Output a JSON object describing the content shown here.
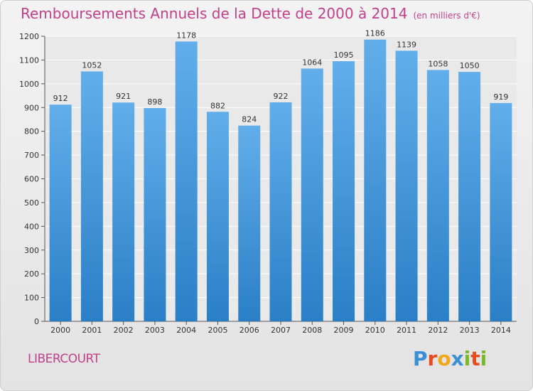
{
  "title": "Remboursements Annuels de la Dette de 2000 à 2014",
  "unit": "(en milliers d'€)",
  "city": "LIBERCOURT",
  "logo": {
    "text": "Proxiti",
    "letters": [
      "P",
      "r",
      "o",
      "x",
      "i",
      "t",
      "i"
    ],
    "colors": [
      "#3b8fd6",
      "#e8491d",
      "#f2a81d",
      "#3b8fd6",
      "#7ab929",
      "#e8491d",
      "#7ab929"
    ]
  },
  "colors": {
    "bar_top": "#62aeea",
    "bar_bottom": "#2a7fc6",
    "title": "#c2408a"
  },
  "chart_data": {
    "type": "bar",
    "categories": [
      "2000",
      "2001",
      "2002",
      "2003",
      "2004",
      "2005",
      "2006",
      "2007",
      "2008",
      "2009",
      "2010",
      "2011",
      "2012",
      "2013",
      "2014"
    ],
    "values": [
      912,
      1052,
      921,
      898,
      1178,
      882,
      824,
      922,
      1064,
      1095,
      1186,
      1139,
      1058,
      1050,
      919
    ],
    "ylim": [
      0,
      1200
    ],
    "yticks": [
      0,
      100,
      200,
      300,
      400,
      500,
      600,
      700,
      800,
      900,
      1000,
      1100,
      1200
    ],
    "grid": true
  }
}
